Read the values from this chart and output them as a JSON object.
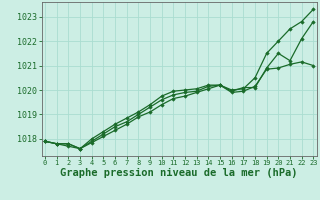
{
  "background_color": "#cceee4",
  "plot_bg_color": "#cceee4",
  "grid_color": "#aaddd0",
  "line_color": "#1a6b2a",
  "xlabel": "Graphe pression niveau de la mer (hPa)",
  "xlabel_fontsize": 7.5,
  "ylabel_ticks": [
    1018,
    1019,
    1020,
    1021,
    1022,
    1023
  ],
  "xticks": [
    0,
    1,
    2,
    3,
    4,
    5,
    6,
    7,
    8,
    9,
    10,
    11,
    12,
    13,
    14,
    15,
    16,
    17,
    18,
    19,
    20,
    21,
    22,
    23
  ],
  "xlim": [
    -0.3,
    23.3
  ],
  "ylim": [
    1017.3,
    1023.6
  ],
  "series": [
    [
      1017.9,
      1017.8,
      1017.8,
      1017.6,
      1017.9,
      1018.2,
      1018.5,
      1018.7,
      1019.0,
      1019.3,
      1019.6,
      1019.8,
      1019.9,
      1019.95,
      1020.15,
      1020.2,
      1020.0,
      1020.05,
      1020.5,
      1021.5,
      1022.0,
      1022.5,
      1022.8,
      1023.3
    ],
    [
      1017.9,
      1017.8,
      1017.8,
      1017.6,
      1018.0,
      1018.3,
      1018.6,
      1018.85,
      1019.1,
      1019.4,
      1019.75,
      1019.95,
      1020.0,
      1020.05,
      1020.2,
      1020.2,
      1019.95,
      1020.1,
      1020.1,
      1020.9,
      1021.5,
      1021.2,
      1022.1,
      1022.8
    ],
    [
      1017.9,
      1017.8,
      1017.7,
      1017.6,
      1017.85,
      1018.1,
      1018.35,
      1018.6,
      1018.9,
      1019.1,
      1019.4,
      1019.65,
      1019.75,
      1019.9,
      1020.05,
      1020.2,
      1019.9,
      1019.95,
      1020.15,
      1020.85,
      1020.9,
      1021.05,
      1021.15,
      1021.0
    ]
  ]
}
